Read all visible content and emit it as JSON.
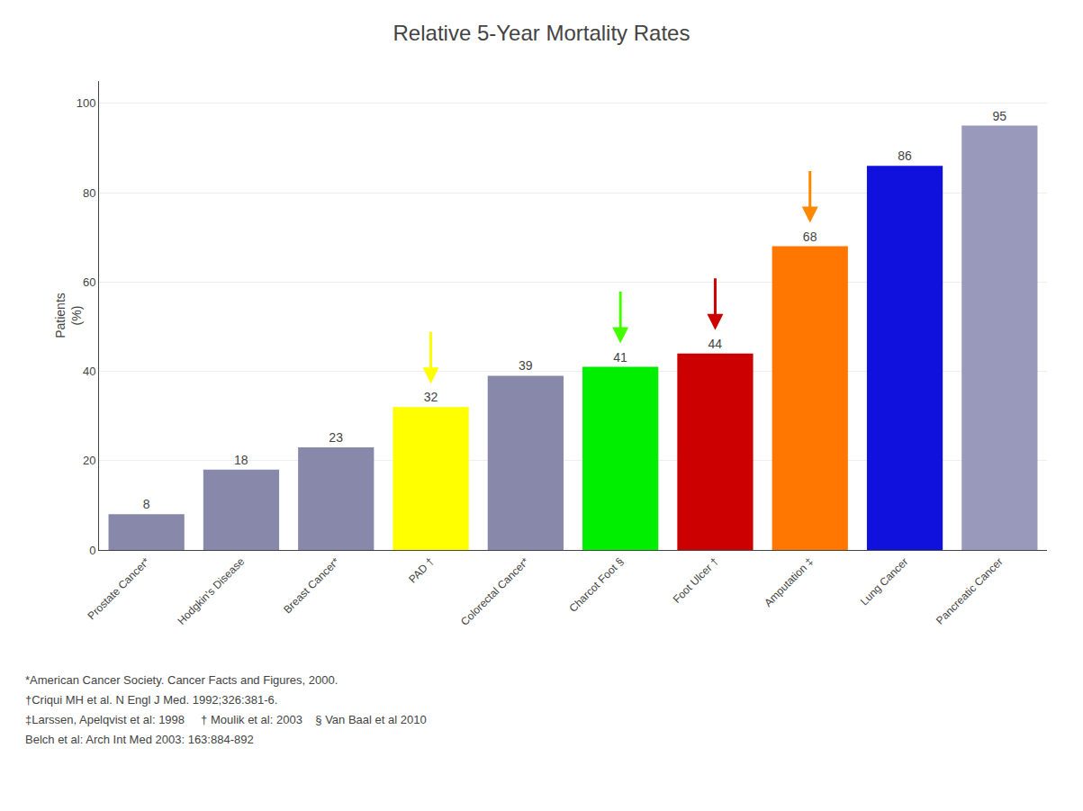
{
  "chart_data": {
    "type": "bar",
    "title": "Relative 5-Year Mortality Rates",
    "ylabel": "Patients\n(%)",
    "categories": [
      "Prostate Cancer*",
      "Hodgkin's Disease",
      "Breast Cancer*",
      "PAD †",
      "Colorectal Cancer*",
      "Charcot Foot §",
      "Foot Ulcer †",
      "Amputation ‡",
      "Lung Cancer",
      "Pancreatic Cancer"
    ],
    "values": [
      8,
      18,
      23,
      32,
      39,
      41,
      44,
      68,
      86,
      95
    ],
    "colors": [
      "#8888aa",
      "#8888aa",
      "#8888aa",
      "#ffff00",
      "#8888aa",
      "#00ee00",
      "#cc0000",
      "#ff7700",
      "#1111dd",
      "#9999bb"
    ],
    "data_labels": true,
    "arrows": [
      {
        "category": "PAD †",
        "color": "#ffff00"
      },
      {
        "category": "Charcot Foot §",
        "color": "#44ff00"
      },
      {
        "category": "Foot Ulcer †",
        "color": "#cc0000"
      },
      {
        "category": "Amputation ‡",
        "color": "#ff8800"
      }
    ],
    "ylim": [
      0,
      105
    ],
    "yticks": [
      0,
      20,
      40,
      60,
      80,
      100
    ],
    "grid": true,
    "footnotes": [
      "*American Cancer Society. Cancer Facts and Figures, 2000.",
      "†Criqui MH et al. N Engl J Med. 1992;326:381-6.",
      "‡Larssen, Apelqvist et al: 1998     † Moulik et al: 2003    § Van Baal et al 2010",
      "Belch et al: Arch Int Med 2003: 163:884-892"
    ]
  }
}
